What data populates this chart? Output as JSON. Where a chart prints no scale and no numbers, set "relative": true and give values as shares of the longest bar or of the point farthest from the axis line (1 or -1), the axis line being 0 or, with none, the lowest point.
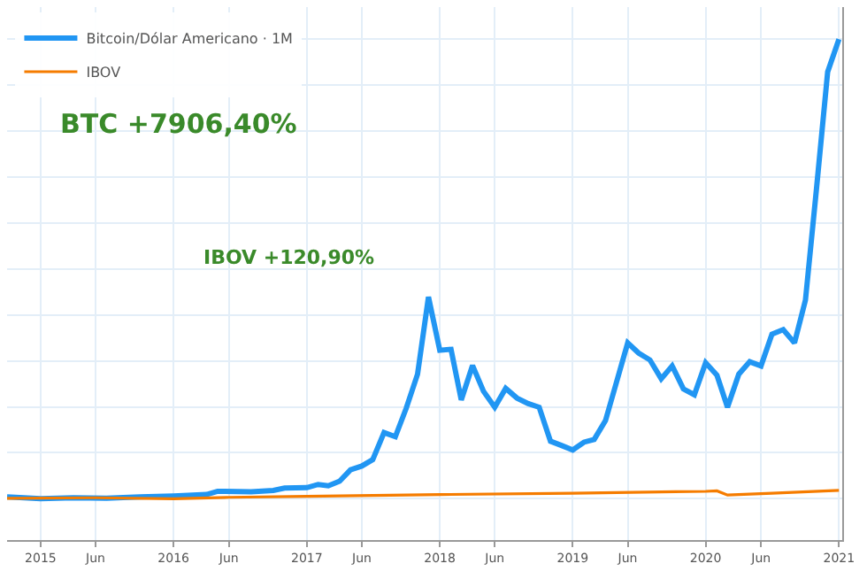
{
  "chart_data": {
    "type": "line",
    "relative": true,
    "grid": true,
    "legend": "top left",
    "marker": "none",
    "line_style": "solid",
    "xlim": [
      "2014-10-01",
      "2021-01-10"
    ],
    "xticks": [
      {
        "value": "2015-01-01",
        "label": "2015"
      },
      {
        "value": "2015-06-01",
        "label": "Jun"
      },
      {
        "value": "2016-01-01",
        "label": "2016"
      },
      {
        "value": "2016-06-01",
        "label": "Jun"
      },
      {
        "value": "2017-01-01",
        "label": "2017"
      },
      {
        "value": "2017-06-01",
        "label": "Jun"
      },
      {
        "value": "2018-01-01",
        "label": "2018"
      },
      {
        "value": "2018-06-01",
        "label": "Jun"
      },
      {
        "value": "2019-01-01",
        "label": "2019"
      },
      {
        "value": "2019-06-01",
        "label": "Jun"
      },
      {
        "value": "2020-01-01",
        "label": "2020"
      },
      {
        "value": "2020-06-01",
        "label": "Jun"
      },
      {
        "value": "2021-01-01",
        "label": "2021"
      }
    ],
    "annotations": [
      "BTC +7906,40%",
      "IBOV +120,90%"
    ],
    "series": [
      {
        "name": "Bitcoin/Dólar Americano · 1M",
        "color": "#2196f3",
        "x": [
          "2014-10",
          "2015-01",
          "2015-04",
          "2015-07",
          "2015-10",
          "2016-01",
          "2016-04",
          "2016-05",
          "2016-08",
          "2016-10",
          "2016-11",
          "2017-01",
          "2017-02",
          "2017-03",
          "2017-04",
          "2017-05",
          "2017-06",
          "2017-07",
          "2017-08",
          "2017-09",
          "2017-10",
          "2017-11",
          "2017-12",
          "2018-01",
          "2018-02",
          "2018-03",
          "2018-04",
          "2018-05",
          "2018-06",
          "2018-07",
          "2018-08",
          "2018-09",
          "2018-10",
          "2018-11",
          "2018-12",
          "2019-01",
          "2019-02",
          "2019-03",
          "2019-04",
          "2019-05",
          "2019-06",
          "2019-07",
          "2019-08",
          "2019-09",
          "2019-10",
          "2019-11",
          "2019-12",
          "2020-01",
          "2020-02",
          "2020-03",
          "2020-04",
          "2020-05",
          "2020-06",
          "2020-07",
          "2020-08",
          "2020-09",
          "2020-10",
          "2020-11",
          "2020-12",
          "2021-01"
        ],
        "values": [
          0.004,
          0,
          0.002,
          0.001,
          0.004,
          0.006,
          0.009,
          0.016,
          0.015,
          0.018,
          0.023,
          0.024,
          0.031,
          0.028,
          0.038,
          0.063,
          0.071,
          0.085,
          0.144,
          0.135,
          0.197,
          0.271,
          0.439,
          0.323,
          0.325,
          0.215,
          0.29,
          0.234,
          0.199,
          0.24,
          0.219,
          0.207,
          0.199,
          0.125,
          0.116,
          0.106,
          0.123,
          0.129,
          0.17,
          0.253,
          0.339,
          0.317,
          0.302,
          0.261,
          0.289,
          0.239,
          0.226,
          0.296,
          0.269,
          0.199,
          0.271,
          0.298,
          0.289,
          0.358,
          0.368,
          0.339,
          0.432,
          0.68,
          0.929,
          1
        ]
      },
      {
        "name": "IBOV",
        "color": "#f57c00",
        "x": [
          "2014-10",
          "2015-06",
          "2016-01",
          "2016-06",
          "2017-01",
          "2018-01",
          "2019-01",
          "2020-01",
          "2020-02",
          "2020-03",
          "2020-07",
          "2021-01"
        ],
        "values": [
          0.001,
          0.002,
          0,
          0.003,
          0.005,
          0.009,
          0.012,
          0.016,
          0.017,
          0.008,
          0.012,
          0.018
        ]
      }
    ]
  }
}
